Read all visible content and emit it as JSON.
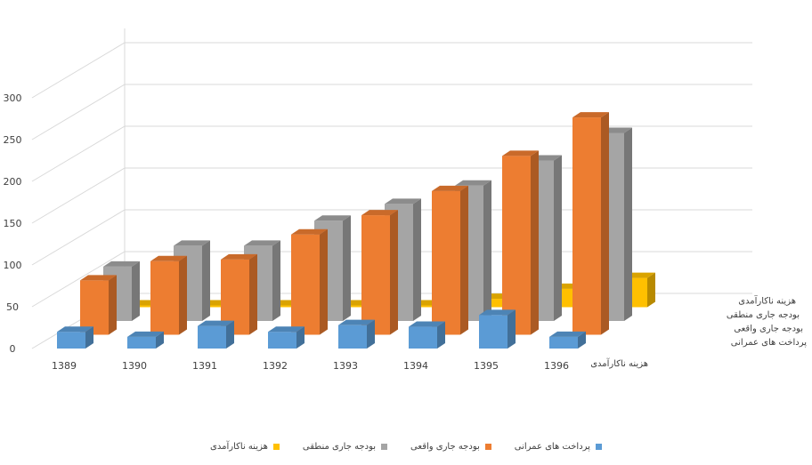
{
  "chart_data": {
    "type": "bar",
    "subtype": "3d-column",
    "categories": [
      "1389",
      "1390",
      "1391",
      "1392",
      "1393",
      "1394",
      "1395",
      "1396"
    ],
    "ylim": [
      0,
      300
    ],
    "yticks": [
      "0",
      "50",
      "100",
      "150",
      "200",
      "250",
      "300"
    ],
    "grid": true,
    "legend_position": "bottom",
    "depth_axis_title": "هزینه ناکارآمدی",
    "series": [
      {
        "name": "پرداخت های عمرانی",
        "color": "#5B9BD5",
        "values": [
          20,
          14,
          27,
          20,
          28,
          26,
          40,
          14
        ]
      },
      {
        "name": "بودجه جاری واقعی",
        "color": "#ED7D31",
        "values": [
          65,
          88,
          90,
          120,
          143,
          172,
          214,
          260
        ]
      },
      {
        "name": "بودجه جاری منطقی",
        "color": "#A5A5A5",
        "values": [
          65,
          90,
          90,
          120,
          140,
          162,
          192,
          225
        ]
      },
      {
        "name": "هزینه ناکارآمدی",
        "color": "#FFC000",
        "values": [
          0,
          0,
          0,
          0,
          0,
          10,
          22,
          35
        ]
      }
    ]
  }
}
